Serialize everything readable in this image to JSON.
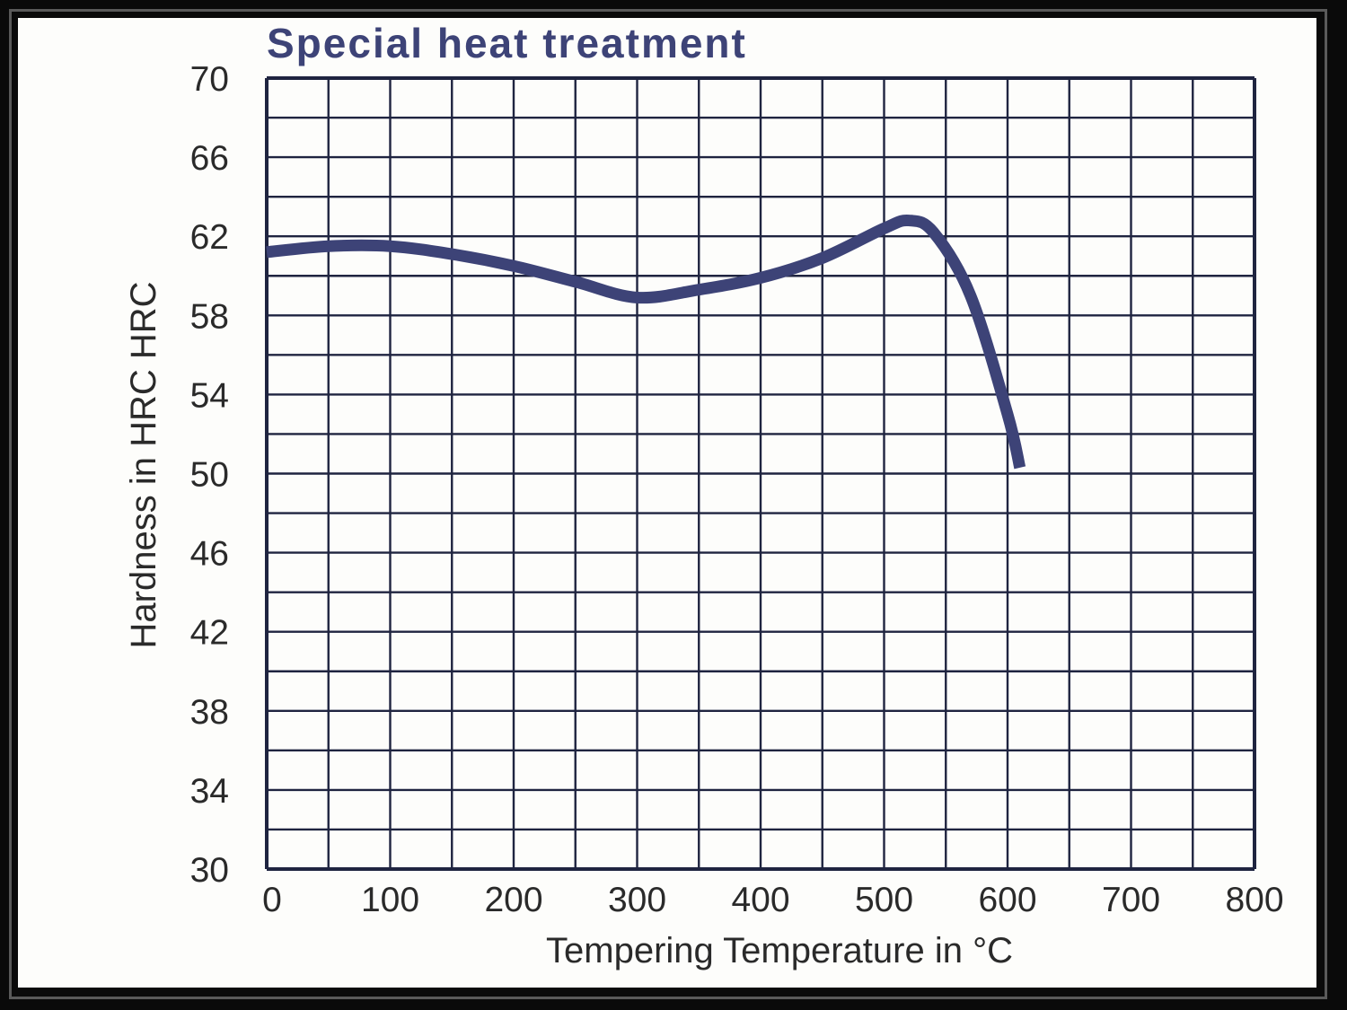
{
  "chart_data": {
    "type": "line",
    "title": "Special heat treatment",
    "xlabel": "Tempering Temperature in °C",
    "ylabel": "Hardness in HRC  HRC",
    "xlim": [
      0,
      800
    ],
    "ylim": [
      30,
      70
    ],
    "xticks": [
      "0",
      "100",
      "200",
      "300",
      "400",
      "500",
      "600",
      "700",
      "800"
    ],
    "yticks": [
      "30",
      "34",
      "38",
      "42",
      "46",
      "50",
      "54",
      "58",
      "62",
      "66",
      "70"
    ],
    "grid": true,
    "series": [
      {
        "x": [
          0,
          50,
          100,
          150,
          200,
          250,
          300,
          350,
          400,
          450,
          500,
          520,
          540,
          570,
          600,
          610
        ],
        "values": [
          61.2,
          61.5,
          61.5,
          61.1,
          60.5,
          59.7,
          58.9,
          59.3,
          59.9,
          60.9,
          62.4,
          62.8,
          62.2,
          59.0,
          53.0,
          50.3
        ]
      }
    ],
    "colors": {
      "line": "#3d4377",
      "grid": "#1f2440",
      "title": "#3d4377"
    }
  }
}
